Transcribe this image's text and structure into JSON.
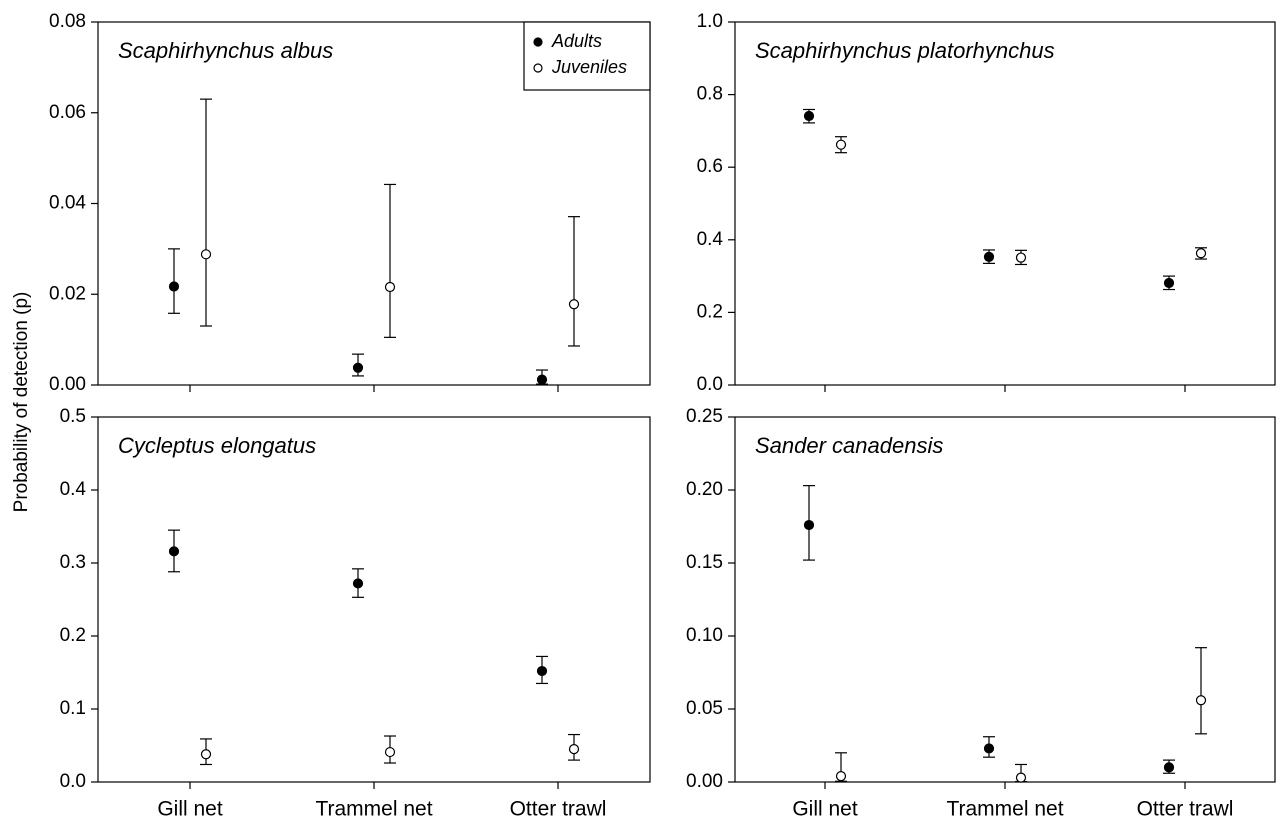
{
  "y_label": "Probability of detection (p)",
  "chart_data": [
    {
      "type": "errorbar",
      "title": "Scaphirhynchus albus",
      "categories": [
        null,
        null,
        null
      ],
      "ylim": [
        0,
        0.08
      ],
      "yticks": [
        {
          "value": 0,
          "label": "0.00"
        },
        0.02,
        0.04,
        0.06,
        0.08
      ],
      "legend": "upper right",
      "series": [
        {
          "name": "Adults",
          "color": "#000000",
          "fill": "#000000",
          "values": [
            0.0217,
            0.0038,
            0.0012
          ],
          "lower": [
            0.0158,
            0.002,
            0.0002
          ],
          "upper": [
            0.03,
            0.0068,
            0.0033
          ]
        },
        {
          "name": "Juveniles",
          "color": "#000000",
          "fill": "#ffffff",
          "values": [
            0.0288,
            0.0216,
            0.0178
          ],
          "lower": [
            0.013,
            0.0105,
            0.0086
          ],
          "upper": [
            0.063,
            0.0442,
            0.0371
          ]
        }
      ]
    },
    {
      "type": "errorbar",
      "title": "Scaphirhynchus platorhynchus",
      "categories": [
        null,
        null,
        null
      ],
      "ylim": [
        0,
        1
      ],
      "yticks": [
        {
          "value": 0,
          "label": "0.0"
        },
        0.2,
        0.4,
        0.6,
        0.8,
        {
          "value": 1,
          "label": "1.0"
        }
      ],
      "series": [
        {
          "color": "#000000",
          "fill": "#000000",
          "values": [
            0.741,
            0.353,
            0.281
          ],
          "lower": [
            0.722,
            0.335,
            0.263
          ],
          "upper": [
            0.759,
            0.372,
            0.3
          ]
        },
        {
          "color": "#000000",
          "fill": "#ffffff",
          "values": [
            0.662,
            0.351,
            0.363
          ],
          "lower": [
            0.64,
            0.332,
            0.347
          ],
          "upper": [
            0.684,
            0.371,
            0.378
          ]
        }
      ]
    },
    {
      "type": "errorbar",
      "title": "Cycleptus elongatus",
      "categories": [
        "Gill net",
        "Trammel net",
        "Otter trawl"
      ],
      "ylim": [
        0,
        0.5
      ],
      "yticks": [
        {
          "value": 0,
          "label": "0.0"
        },
        0.1,
        0.2,
        0.3,
        0.4,
        0.5
      ],
      "series": [
        {
          "color": "#000000",
          "fill": "#000000",
          "values": [
            0.316,
            0.272,
            0.152
          ],
          "lower": [
            0.288,
            0.253,
            0.135
          ],
          "upper": [
            0.345,
            0.292,
            0.172
          ]
        },
        {
          "color": "#000000",
          "fill": "#ffffff",
          "values": [
            0.038,
            0.041,
            0.045
          ],
          "lower": [
            0.024,
            0.026,
            0.03
          ],
          "upper": [
            0.059,
            0.063,
            0.065
          ]
        }
      ]
    },
    {
      "type": "errorbar",
      "title": "Sander canadensis",
      "categories": [
        "Gill net",
        "Trammel net",
        "Otter trawl"
      ],
      "ylim": [
        0,
        0.25
      ],
      "yticks": [
        {
          "value": 0,
          "label": "0.00"
        },
        0.05,
        {
          "value": 0.1,
          "label": "0.10"
        },
        0.15,
        {
          "value": 0.2,
          "label": "0.20"
        },
        0.25
      ],
      "series": [
        {
          "color": "#000000",
          "fill": "#000000",
          "values": [
            0.176,
            0.023,
            0.01
          ],
          "lower": [
            0.152,
            0.017,
            0.006
          ],
          "upper": [
            0.203,
            0.031,
            0.015
          ]
        },
        {
          "color": "#000000",
          "fill": "#ffffff",
          "values": [
            0.004,
            0.003,
            0.056
          ],
          "lower": [
            0.0005,
            0.0003,
            0.033
          ],
          "upper": [
            0.02,
            0.012,
            0.092
          ]
        }
      ]
    }
  ]
}
